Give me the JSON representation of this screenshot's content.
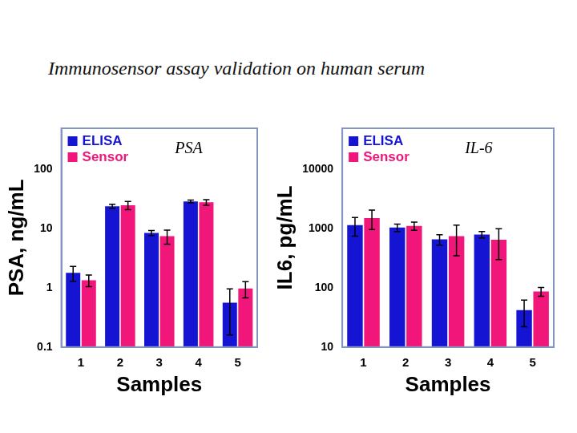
{
  "title": "Immunosensor assay validation on human serum",
  "chart_data": [
    {
      "type": "bar",
      "annotation": "PSA",
      "x_label": "Samples",
      "y_label": "PSA, ng/mL",
      "categories": [
        "1",
        "2",
        "3",
        "4",
        "5"
      ],
      "series": [
        {
          "name": "ELISA",
          "color": "#1414d2",
          "values": [
            1.8,
            24,
            8.5,
            29,
            0.56
          ],
          "errors": [
            0.5,
            2,
            0.8,
            1.5,
            0.4
          ]
        },
        {
          "name": "Sensor",
          "color": "#f0167a",
          "values": [
            1.35,
            25,
            7.5,
            28,
            0.98
          ],
          "errors": [
            0.3,
            4,
            2,
            3,
            0.3
          ]
        }
      ],
      "ylim": [
        0.1,
        500
      ],
      "yticks": [
        0.1,
        1,
        10,
        100
      ],
      "log": "y",
      "grid": false,
      "legend": "upper left"
    },
    {
      "type": "bar",
      "annotation": "IL-6",
      "x_label": "Samples",
      "y_label": "IL6, pg/mL",
      "categories": [
        "1",
        "2",
        "3",
        "4",
        "5"
      ],
      "series": [
        {
          "name": "ELISA",
          "color": "#1414d2",
          "values": [
            1150,
            1050,
            660,
            800,
            42
          ],
          "errors": [
            400,
            150,
            130,
            100,
            20
          ]
        },
        {
          "name": "Sensor",
          "color": "#f0167a",
          "values": [
            1520,
            1120,
            750,
            650,
            87
          ],
          "errors": [
            550,
            180,
            400,
            350,
            15
          ]
        }
      ],
      "ylim": [
        10,
        50000
      ],
      "yticks": [
        10,
        100,
        1000,
        10000
      ],
      "log": "y",
      "grid": false,
      "legend": "upper left"
    }
  ]
}
